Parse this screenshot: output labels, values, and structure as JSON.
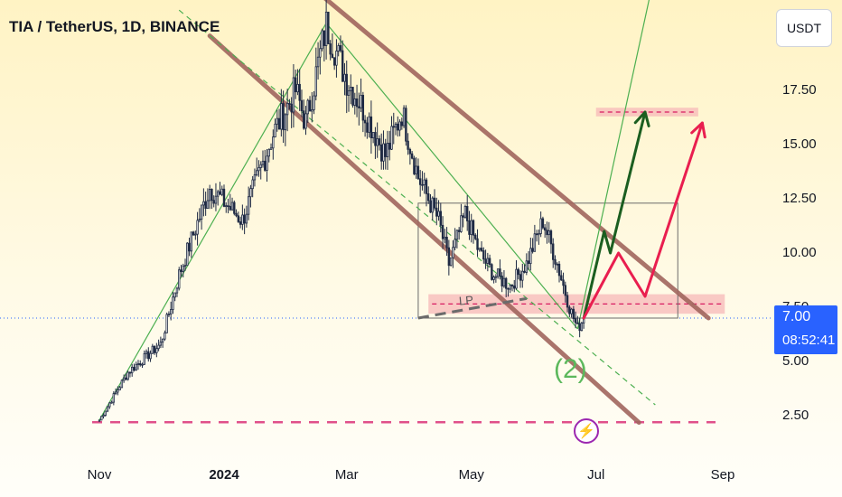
{
  "header": {
    "title": "TIA / TetherUS, 1D, BINANCE"
  },
  "toolbar": {
    "currency": "USDT"
  },
  "price_tag": {
    "price": "7.00",
    "countdown": "08:52:41"
  },
  "annotations": {
    "wave": "(2)",
    "lp": "LP"
  },
  "icons": {
    "marker": "lightning-icon"
  },
  "colors": {
    "up": "#089981",
    "down": "#f23645",
    "channel": "#a1665e",
    "trend": "#4caf50",
    "zone": "#f7b8b8",
    "zone_dash": "#d81b60",
    "arrow_green": "#1b5e20",
    "arrow_red": "#e91e4f"
  },
  "chart_data": {
    "type": "candlestick",
    "title": "TIA / TetherUS, 1D, BINANCE",
    "x_ticks": [
      "Nov",
      "2024",
      "Mar",
      "May",
      "Jul",
      "Sep"
    ],
    "y_ticks": [
      "17.50",
      "15.00",
      "12.50",
      "10.00",
      "7.50",
      "5.00",
      "2.50"
    ],
    "ylim": [
      0.5,
      21
    ],
    "last_price": 7.0,
    "series": [
      {
        "date": "2023-11-01",
        "close": 2.3
      },
      {
        "date": "2023-11-15",
        "close": 4.5
      },
      {
        "date": "2023-12-01",
        "close": 5.8
      },
      {
        "date": "2023-12-10",
        "close": 9.0
      },
      {
        "date": "2023-12-25",
        "close": 13.0
      },
      {
        "date": "2024-01-10",
        "close": 11.5
      },
      {
        "date": "2024-01-25",
        "close": 15.5
      },
      {
        "date": "2024-02-05",
        "close": 17.5
      },
      {
        "date": "2024-02-10",
        "close": 16.0
      },
      {
        "date": "2024-02-20",
        "close": 20.5
      },
      {
        "date": "2024-03-01",
        "close": 18.0
      },
      {
        "date": "2024-03-10",
        "close": 16.5
      },
      {
        "date": "2024-03-20",
        "close": 14.5
      },
      {
        "date": "2024-03-28",
        "close": 16.5
      },
      {
        "date": "2024-04-05",
        "close": 13.5
      },
      {
        "date": "2024-04-15",
        "close": 11.5
      },
      {
        "date": "2024-04-20",
        "close": 9.5
      },
      {
        "date": "2024-04-28",
        "close": 11.8
      },
      {
        "date": "2024-05-05",
        "close": 10.0
      },
      {
        "date": "2024-05-12",
        "close": 9.0
      },
      {
        "date": "2024-05-20",
        "close": 8.5
      },
      {
        "date": "2024-05-28",
        "close": 9.5
      },
      {
        "date": "2024-06-05",
        "close": 11.5
      },
      {
        "date": "2024-06-12",
        "close": 9.5
      },
      {
        "date": "2024-06-18",
        "close": 7.5
      },
      {
        "date": "2024-06-22",
        "close": 6.5
      },
      {
        "date": "2024-06-25",
        "close": 7.0
      }
    ],
    "zones": [
      {
        "name": "resistance-zone",
        "from": "2024-07-01",
        "to": "2024-08-20",
        "low": 16.3,
        "high": 16.7
      },
      {
        "name": "support-zone",
        "from": "2024-04-10",
        "to": "2024-09-02",
        "low": 7.2,
        "high": 8.1
      }
    ],
    "horizontal_lines": [
      {
        "name": "bottom-support",
        "price": 2.2
      }
    ],
    "projections": [
      {
        "name": "green-path",
        "points": [
          [
            "2024-06-25",
            7.0
          ],
          [
            "2024-07-05",
            11.0
          ],
          [
            "2024-07-08",
            10.0
          ],
          [
            "2024-07-25",
            16.5
          ]
        ]
      },
      {
        "name": "red-path",
        "points": [
          [
            "2024-06-25",
            7.0
          ],
          [
            "2024-07-12",
            10.0
          ],
          [
            "2024-07-25",
            8.0
          ],
          [
            "2024-08-22",
            16.0
          ]
        ]
      }
    ]
  }
}
